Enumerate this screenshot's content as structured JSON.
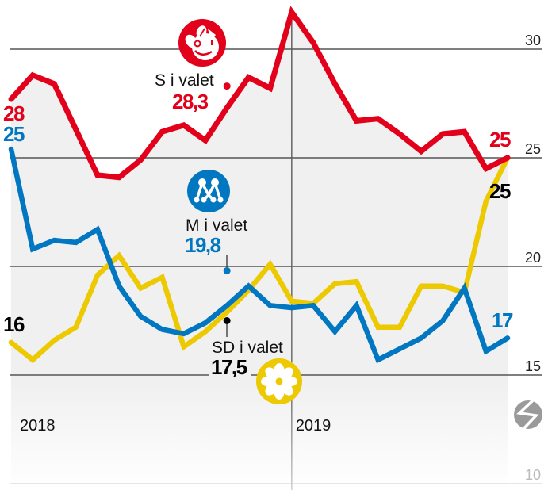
{
  "chart_data": {
    "type": "line",
    "title": "",
    "xlabel": "",
    "ylabel": "",
    "x": [
      1,
      2,
      3,
      4,
      5,
      6,
      7,
      8,
      9,
      10,
      11,
      12,
      13,
      14,
      15,
      16,
      17,
      18,
      19,
      20,
      21,
      22,
      23,
      24
    ],
    "period_labels": [
      {
        "label": "2018",
        "index": 0
      },
      {
        "label": "2019",
        "index": 13
      }
    ],
    "yticks": [
      10,
      15,
      20,
      25,
      30
    ],
    "ylim": [
      10,
      32
    ],
    "grid": true,
    "legend": "none (inline party logos and labels)",
    "series": [
      {
        "key": "s",
        "name": "S",
        "color": "#e2001a",
        "label_color": "#e2001a",
        "values": [
          27.7,
          28.8,
          28.4,
          26.3,
          24.2,
          24.1,
          24.9,
          26.2,
          26.5,
          25.8,
          27.3,
          28.7,
          28.2,
          31.7,
          30.3,
          28.4,
          26.7,
          26.8,
          26.1,
          25.3,
          26.1,
          26.2,
          24.5,
          25.0
        ],
        "start_label": "28",
        "end_label": "25",
        "election": {
          "label": "S i valet",
          "value": 28.3,
          "value_label": "28,3",
          "index": 10
        },
        "logo_icon": "social-democrats-rose-logo-icon"
      },
      {
        "key": "m",
        "name": "M",
        "color": "#0077c0",
        "label_color": "#0077c0",
        "values": [
          25.4,
          20.8,
          21.2,
          21.1,
          21.7,
          19.1,
          17.7,
          17.1,
          16.9,
          17.4,
          18.2,
          19.1,
          18.2,
          18.1,
          18.2,
          17.0,
          18.2,
          15.7,
          16.2,
          16.7,
          17.5,
          19.0,
          16.1,
          16.7
        ],
        "start_label": "25",
        "end_label": "17",
        "election": {
          "label": "M i valet",
          "value": 19.8,
          "value_label": "19,8",
          "index": 10
        },
        "logo_icon": "moderates-m-logo-icon"
      },
      {
        "key": "sd",
        "name": "SD",
        "color": "#ecc900",
        "label_color": "#000000",
        "values": [
          16.5,
          15.7,
          16.6,
          17.2,
          19.6,
          20.5,
          19.0,
          19.5,
          16.3,
          17.0,
          17.9,
          18.9,
          20.1,
          18.4,
          18.3,
          19.2,
          19.3,
          17.2,
          17.2,
          19.1,
          19.1,
          18.8,
          23.0,
          25.0
        ],
        "start_label": "16",
        "end_label": "25",
        "election": {
          "label": "SD i valet",
          "value": 17.5,
          "value_label": "17,5",
          "index": 10
        },
        "logo_icon": "sweden-democrats-daisy-logo-icon"
      }
    ]
  },
  "source_icon": "lightning-circle-logo-icon",
  "colors": {
    "area_fill": "#f0f0f0",
    "gridline": "#555555",
    "gridline_faint": "#dddddd",
    "tick_label": "#222222",
    "tick_label_faint": "#bbbbbb",
    "source_icon": "#9a9a9a"
  }
}
